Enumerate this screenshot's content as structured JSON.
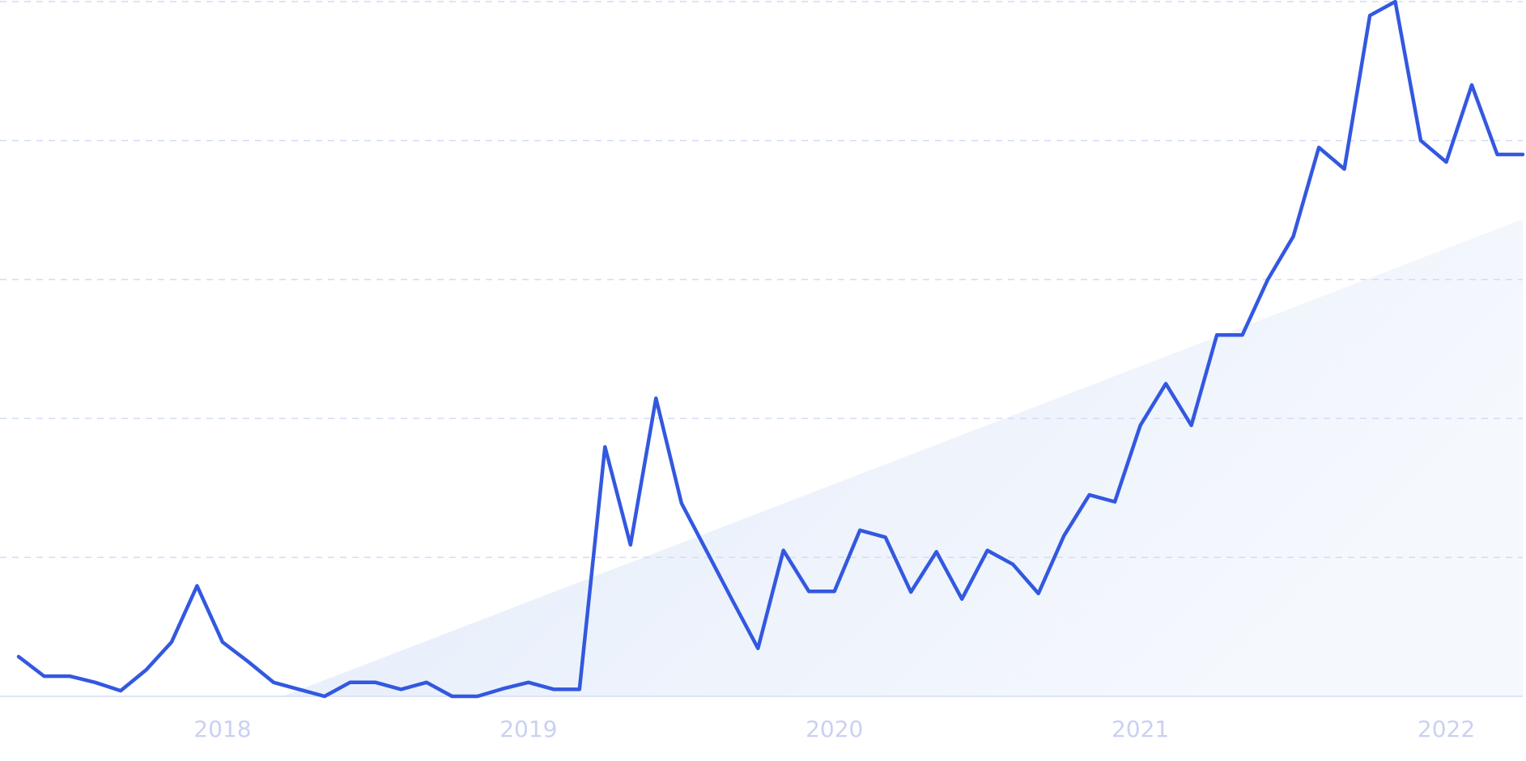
{
  "chart_data": {
    "type": "line",
    "categories": [
      null,
      null,
      null,
      null,
      null,
      null,
      null,
      null,
      "2018",
      null,
      null,
      null,
      null,
      null,
      null,
      null,
      null,
      null,
      null,
      null,
      "2019",
      null,
      null,
      null,
      null,
      null,
      null,
      null,
      null,
      null,
      null,
      null,
      "2020",
      null,
      null,
      null,
      null,
      null,
      null,
      null,
      null,
      null,
      null,
      null,
      "2021",
      null,
      null,
      null,
      null,
      null,
      null,
      null,
      null,
      null,
      null,
      null,
      "2022",
      null,
      null,
      null
    ],
    "series": [
      {
        "color": "#3358e0",
        "values": [
          5.7,
          2.9,
          2.9,
          2.0,
          0.8,
          3.8,
          7.8,
          15.9,
          7.8,
          5.0,
          2.0,
          1.0,
          0,
          2.0,
          2.0,
          1.0,
          2.0,
          0,
          0,
          1.1,
          2.0,
          1.0,
          1.0,
          35.9,
          21.8,
          42.9,
          27.8,
          20.8,
          13.8,
          6.9,
          21.0,
          15.1,
          15.1,
          23.9,
          22.9,
          15.0,
          20.8,
          14.0,
          21.0,
          19.0,
          14.8,
          23.1,
          29.0,
          28.0,
          39.0,
          45.0,
          39.0,
          52.0,
          52.0,
          60.0,
          66.2,
          79.0,
          75.9,
          98.0,
          100,
          80,
          76.9,
          88.0,
          78.0,
          78.0
        ]
      }
    ],
    "ylim": [
      0,
      100
    ],
    "yticks": [
      0,
      20,
      40,
      60,
      80,
      100
    ],
    "grid": true
  }
}
